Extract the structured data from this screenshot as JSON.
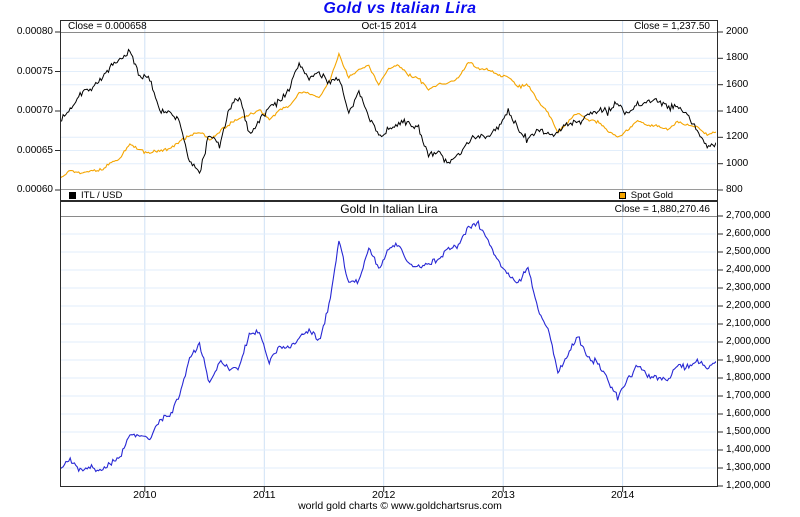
{
  "title": "Gold vs Italian Lira",
  "footer": "world gold charts © www.goldchartsrus.com",
  "colors": {
    "title": "#0a0af0",
    "itl_usd": "#000000",
    "spot_gold": "#f5a500",
    "gold_lira": "#2828d4",
    "grid_h": "#e2eefb",
    "grid_v": "#cfe1f5",
    "panel_border": "#2b2b2b",
    "tick": "#2b2b2b"
  },
  "top_panel": {
    "close_left": "Close = 0.000658",
    "date_center": "Oct-15  2014",
    "close_right": "Close = 1,237.50",
    "legend": [
      {
        "label": "ITL / USD",
        "color_key": "itl_usd"
      },
      {
        "label": "Spot Gold",
        "color_key": "spot_gold"
      }
    ],
    "left_axis_ticks": [
      {
        "label": "0.00080",
        "value": 0.0008
      },
      {
        "label": "0.00075",
        "value": 0.00075
      },
      {
        "label": "0.00070",
        "value": 0.0007
      },
      {
        "label": "0.00065",
        "value": 0.00065
      },
      {
        "label": "0.00060",
        "value": 0.0006
      }
    ],
    "right_axis_ticks": [
      {
        "label": "2000",
        "value": 2000
      },
      {
        "label": "1800",
        "value": 1800
      },
      {
        "label": "1600",
        "value": 1600
      },
      {
        "label": "1400",
        "value": 1400
      },
      {
        "label": "1200",
        "value": 1200
      },
      {
        "label": "1000",
        "value": 1000
      },
      {
        "label": "800",
        "value": 800
      }
    ]
  },
  "bottom_panel": {
    "title": "Gold In Italian Lira",
    "close_right": "Close = 1,880,270.46",
    "right_axis_ticks": [
      {
        "label": "2,700,000",
        "value": 2700000
      },
      {
        "label": "2,600,000",
        "value": 2600000
      },
      {
        "label": "2,500,000",
        "value": 2500000
      },
      {
        "label": "2,400,000",
        "value": 2400000
      },
      {
        "label": "2,300,000",
        "value": 2300000
      },
      {
        "label": "2,200,000",
        "value": 2200000
      },
      {
        "label": "2,100,000",
        "value": 2100000
      },
      {
        "label": "2,000,000",
        "value": 2000000
      },
      {
        "label": "1,900,000",
        "value": 1900000
      },
      {
        "label": "1,800,000",
        "value": 1800000
      },
      {
        "label": "1,700,000",
        "value": 1700000
      },
      {
        "label": "1,600,000",
        "value": 1600000
      },
      {
        "label": "1,500,000",
        "value": 1500000
      },
      {
        "label": "1,400,000",
        "value": 1400000
      },
      {
        "label": "1,300,000",
        "value": 1300000
      },
      {
        "label": "1,200,000",
        "value": 1200000
      }
    ]
  },
  "x_axis": {
    "labels": [
      {
        "label": "2010",
        "year": 2010
      },
      {
        "label": "2011",
        "year": 2011
      },
      {
        "label": "2012",
        "year": 2012
      },
      {
        "label": "2013",
        "year": 2013
      },
      {
        "label": "2014",
        "year": 2014
      }
    ]
  },
  "chart_data": [
    {
      "type": "line",
      "panel": "top",
      "title": "Gold vs Italian Lira",
      "xlabel": "",
      "xlim": [
        2009.29,
        2014.79
      ],
      "left_ylim": [
        0.0006,
        0.0008
      ],
      "right_ylim": [
        800,
        2000
      ],
      "grid": true,
      "legend_position": "bottom",
      "x": [
        2009.292,
        2009.375,
        2009.458,
        2009.542,
        2009.625,
        2009.708,
        2009.792,
        2009.875,
        2009.958,
        2010.042,
        2010.125,
        2010.208,
        2010.292,
        2010.375,
        2010.458,
        2010.542,
        2010.625,
        2010.708,
        2010.792,
        2010.875,
        2010.958,
        2011.042,
        2011.125,
        2011.208,
        2011.292,
        2011.375,
        2011.458,
        2011.542,
        2011.625,
        2011.708,
        2011.792,
        2011.875,
        2011.958,
        2012.042,
        2012.125,
        2012.208,
        2012.292,
        2012.375,
        2012.458,
        2012.542,
        2012.625,
        2012.708,
        2012.792,
        2012.875,
        2012.958,
        2013.042,
        2013.125,
        2013.208,
        2013.292,
        2013.375,
        2013.458,
        2013.542,
        2013.625,
        2013.708,
        2013.792,
        2013.875,
        2013.958,
        2014.042,
        2014.125,
        2014.208,
        2014.292,
        2014.375,
        2014.458,
        2014.542,
        2014.625,
        2014.708,
        2014.792
      ],
      "series": [
        {
          "name": "ITL / USD",
          "axis": "left",
          "color_key": "itl_usd",
          "close": 0.000658,
          "values": [
            0.000687,
            0.000702,
            0.000723,
            0.000728,
            0.000739,
            0.000754,
            0.000764,
            0.000775,
            0.000745,
            0.00074,
            0.000702,
            0.000697,
            0.000687,
            0.000635,
            0.000622,
            0.000671,
            0.000656,
            0.000702,
            0.000718,
            0.000671,
            0.000688,
            0.000705,
            0.000713,
            0.000727,
            0.00076,
            0.000742,
            0.000748,
            0.000737,
            0.000743,
            0.000695,
            0.000724,
            0.000696,
            0.000668,
            0.000676,
            0.000686,
            0.000683,
            0.00068,
            0.000642,
            0.000648,
            0.000633,
            0.000645,
            0.000663,
            0.000669,
            0.000667,
            0.000679,
            0.000699,
            0.000678,
            0.000662,
            0.000678,
            0.000669,
            0.000673,
            0.000685,
            0.000684,
            0.000696,
            0.000701,
            0.000699,
            0.00071,
            0.000697,
            0.000709,
            0.000712,
            0.000715,
            0.000704,
            0.000706,
            0.000694,
            0.000675,
            0.000655,
            0.000658
          ]
        },
        {
          "name": "Spot Gold",
          "axis": "right",
          "color_key": "spot_gold",
          "close": 1237.5,
          "values": [
            890,
            950,
            930,
            950,
            950,
            1000,
            1040,
            1150,
            1100,
            1080,
            1100,
            1110,
            1170,
            1210,
            1240,
            1185,
            1240,
            1300,
            1340,
            1370,
            1410,
            1335,
            1410,
            1430,
            1540,
            1535,
            1500,
            1620,
            1825,
            1655,
            1722,
            1745,
            1598,
            1720,
            1750,
            1670,
            1650,
            1560,
            1600,
            1615,
            1650,
            1775,
            1720,
            1715,
            1670,
            1660,
            1580,
            1598,
            1470,
            1390,
            1235,
            1320,
            1390,
            1330,
            1320,
            1250,
            1200,
            1250,
            1325,
            1290,
            1290,
            1255,
            1320,
            1290,
            1280,
            1220,
            1237.5
          ]
        }
      ]
    },
    {
      "type": "line",
      "panel": "bottom",
      "title": "Gold In Italian Lira",
      "xlabel": "",
      "xlim": [
        2009.29,
        2014.79
      ],
      "right_ylim": [
        1200000,
        2700000
      ],
      "grid": true,
      "x_ref": 0,
      "series": [
        {
          "name": "Gold In Italian Lira",
          "axis": "right",
          "color_key": "gold_lira",
          "close": 1880270.46,
          "values": [
            1295000,
            1353000,
            1286000,
            1305000,
            1286000,
            1326000,
            1361000,
            1484000,
            1477000,
            1459000,
            1567000,
            1593000,
            1703000,
            1906000,
            1994000,
            1766000,
            1890000,
            1852000,
            1866000,
            2042000,
            2049000,
            1894000,
            1978000,
            1967000,
            2026000,
            2069000,
            2005000,
            2198000,
            2560000,
            2330000,
            2335000,
            2529000,
            2402000,
            2511000,
            2547000,
            2431000,
            2419000,
            2437000,
            2458000,
            2520000,
            2535000,
            2640000,
            2660000,
            2556000,
            2449000,
            2375000,
            2330000,
            2414000,
            2168000,
            2078000,
            1833000,
            1927000,
            2032000,
            1911000,
            1883000,
            1788000,
            1690000,
            1793000,
            1869000,
            1812000,
            1804000,
            1783000,
            1870000,
            1859000,
            1896000,
            1863000,
            1880270
          ]
        }
      ]
    }
  ]
}
